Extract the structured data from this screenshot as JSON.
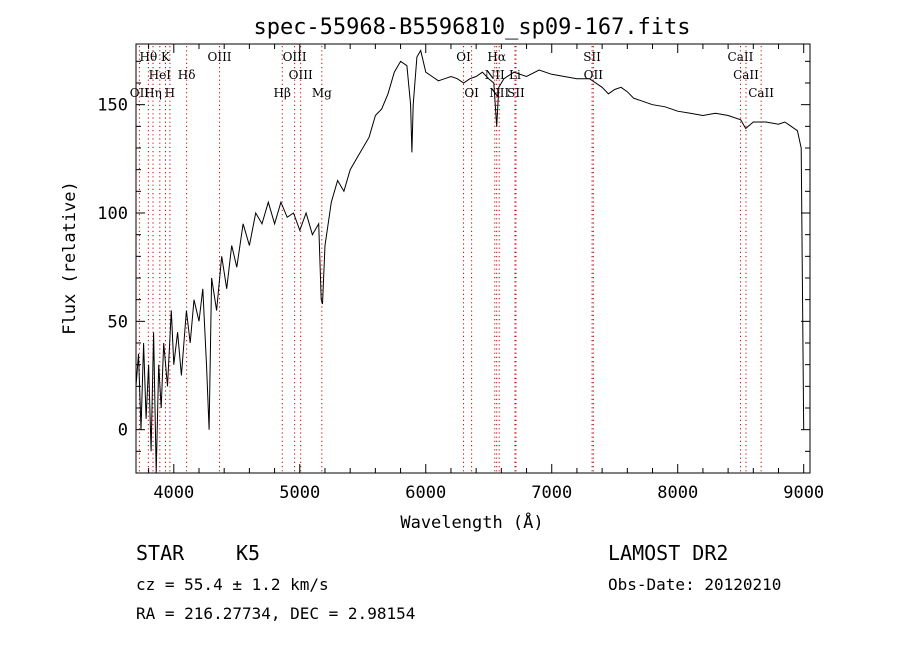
{
  "chart_data": {
    "type": "line",
    "title": "spec-55968-B5596810_sp09-167.fits",
    "xlabel": "Wavelength (Å)",
    "ylabel": "Flux (relative)",
    "xlim": [
      3700,
      9050
    ],
    "ylim": [
      -20,
      178
    ],
    "x_ticks": [
      4000,
      5000,
      6000,
      7000,
      8000,
      9000
    ],
    "y_ticks": [
      0,
      50,
      100,
      150
    ],
    "grid": false,
    "series": [
      {
        "values": [
          [
            3700,
            20
          ],
          [
            3720,
            35
          ],
          [
            3740,
            0
          ],
          [
            3760,
            40
          ],
          [
            3780,
            5
          ],
          [
            3800,
            30
          ],
          [
            3820,
            -10
          ],
          [
            3840,
            45
          ],
          [
            3860,
            -20
          ],
          [
            3880,
            30
          ],
          [
            3900,
            10
          ],
          [
            3920,
            40
          ],
          [
            3950,
            20
          ],
          [
            3980,
            55
          ],
          [
            4000,
            30
          ],
          [
            4030,
            45
          ],
          [
            4060,
            25
          ],
          [
            4100,
            55
          ],
          [
            4130,
            40
          ],
          [
            4160,
            60
          ],
          [
            4200,
            50
          ],
          [
            4230,
            65
          ],
          [
            4260,
            30
          ],
          [
            4280,
            0
          ],
          [
            4300,
            70
          ],
          [
            4340,
            55
          ],
          [
            4380,
            80
          ],
          [
            4420,
            65
          ],
          [
            4460,
            85
          ],
          [
            4500,
            75
          ],
          [
            4550,
            95
          ],
          [
            4600,
            85
          ],
          [
            4650,
            100
          ],
          [
            4700,
            95
          ],
          [
            4750,
            105
          ],
          [
            4800,
            95
          ],
          [
            4850,
            105
          ],
          [
            4900,
            98
          ],
          [
            4950,
            100
          ],
          [
            5000,
            92
          ],
          [
            5050,
            100
          ],
          [
            5100,
            90
          ],
          [
            5150,
            95
          ],
          [
            5170,
            60
          ],
          [
            5180,
            58
          ],
          [
            5200,
            85
          ],
          [
            5250,
            105
          ],
          [
            5300,
            115
          ],
          [
            5350,
            110
          ],
          [
            5400,
            120
          ],
          [
            5450,
            125
          ],
          [
            5500,
            130
          ],
          [
            5550,
            135
          ],
          [
            5600,
            145
          ],
          [
            5650,
            148
          ],
          [
            5700,
            155
          ],
          [
            5750,
            165
          ],
          [
            5800,
            170
          ],
          [
            5850,
            168
          ],
          [
            5880,
            150
          ],
          [
            5890,
            128
          ],
          [
            5900,
            150
          ],
          [
            5930,
            172
          ],
          [
            5960,
            175
          ],
          [
            6000,
            165
          ],
          [
            6050,
            163
          ],
          [
            6100,
            161
          ],
          [
            6150,
            162
          ],
          [
            6200,
            163
          ],
          [
            6250,
            162
          ],
          [
            6300,
            160
          ],
          [
            6350,
            162
          ],
          [
            6400,
            163
          ],
          [
            6450,
            165
          ],
          [
            6500,
            162
          ],
          [
            6540,
            160
          ],
          [
            6563,
            140
          ],
          [
            6580,
            158
          ],
          [
            6620,
            162
          ],
          [
            6700,
            165
          ],
          [
            6800,
            163
          ],
          [
            6900,
            166
          ],
          [
            7000,
            164
          ],
          [
            7100,
            163
          ],
          [
            7200,
            162
          ],
          [
            7300,
            162
          ],
          [
            7400,
            158
          ],
          [
            7450,
            155
          ],
          [
            7500,
            157
          ],
          [
            7550,
            158
          ],
          [
            7600,
            156
          ],
          [
            7650,
            153
          ],
          [
            7700,
            152
          ],
          [
            7800,
            150
          ],
          [
            7900,
            149
          ],
          [
            8000,
            147
          ],
          [
            8100,
            146
          ],
          [
            8200,
            145
          ],
          [
            8300,
            146
          ],
          [
            8400,
            145
          ],
          [
            8500,
            143
          ],
          [
            8540,
            139
          ],
          [
            8600,
            142
          ],
          [
            8700,
            142
          ],
          [
            8800,
            141
          ],
          [
            8850,
            142
          ],
          [
            8900,
            140
          ],
          [
            8950,
            138
          ],
          [
            8980,
            130
          ],
          [
            9000,
            0
          ]
        ]
      }
    ],
    "annotations": [
      {
        "label": "Hθ",
        "x": 3798,
        "row": 1
      },
      {
        "label": "K",
        "x": 3934,
        "row": 1
      },
      {
        "label": "OIII",
        "x": 4363,
        "row": 1
      },
      {
        "label": "OIII",
        "x": 4959,
        "row": 1
      },
      {
        "label": "OI",
        "x": 6300,
        "row": 1
      },
      {
        "label": "Hα",
        "x": 6563,
        "row": 1
      },
      {
        "label": "SII",
        "x": 7320,
        "row": 1
      },
      {
        "label": "CaII",
        "x": 8498,
        "row": 1
      },
      {
        "label": "HeI",
        "x": 3889,
        "row": 2
      },
      {
        "label": "Hδ",
        "x": 4102,
        "row": 2
      },
      {
        "label": "OIII",
        "x": 5007,
        "row": 2
      },
      {
        "label": "NII",
        "x": 6548,
        "row": 2
      },
      {
        "label": "Li",
        "x": 6708,
        "row": 2
      },
      {
        "label": "OII",
        "x": 7330,
        "row": 2
      },
      {
        "label": "CaII",
        "x": 8542,
        "row": 2
      },
      {
        "label": "OII",
        "x": 3727,
        "row": 3
      },
      {
        "label": "Hη",
        "x": 3835,
        "row": 3
      },
      {
        "label": "H",
        "x": 3969,
        "row": 3
      },
      {
        "label": "Hβ",
        "x": 4861,
        "row": 3
      },
      {
        "label": "Mg",
        "x": 5175,
        "row": 3
      },
      {
        "label": "OI",
        "x": 6364,
        "row": 3
      },
      {
        "label": "NII",
        "x": 6583,
        "row": 3
      },
      {
        "label": "SII",
        "x": 6716,
        "row": 3
      },
      {
        "label": "CaII",
        "x": 8662,
        "row": 3
      }
    ]
  },
  "info": {
    "class": "STAR",
    "subclass": "K5",
    "survey": "LAMOST DR2",
    "cz": "cz = 55.4 ± 1.2 km/s",
    "obs_date": "Obs-Date: 20120210",
    "coords": "RA = 216.27734, DEC =   2.98154"
  }
}
